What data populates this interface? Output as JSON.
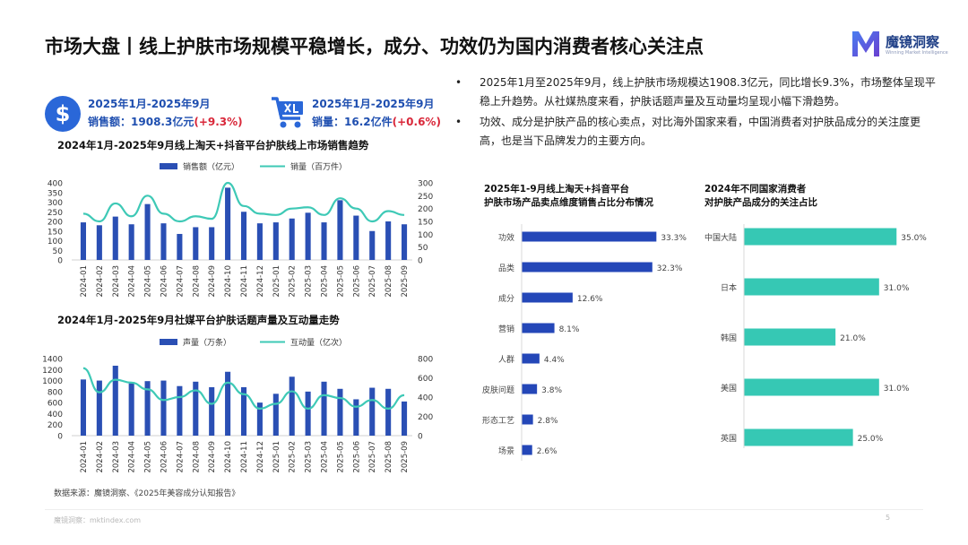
{
  "title": "市场大盘丨线上护肤市场规模平稳增长，成分、功效仍为国内消费者核心关注点",
  "brand": {
    "name": "魔镜洞察",
    "tagline": "Winning Market Intelligence"
  },
  "kpis": [
    {
      "icon": "dollar-icon",
      "period": "2025年1月-2025年9月",
      "label": "销售额：",
      "value": "1908.3亿元",
      "change": "(+9.3%)"
    },
    {
      "icon": "cart-icon",
      "period": "2025年1月-2025年9月",
      "label": "销量：",
      "value": "16.2亿件",
      "change": "(+0.6%)"
    }
  ],
  "bullets": [
    "2025年1月至2025年9月，线上护肤市场规模达1908.3亿元，同比增长9.3%，市场整体呈现平稳上升趋势。从社媒热度来看，护肤话题声量及互动量均呈现小幅下滑趋势。",
    "功效、成分是护肤产品的核心卖点，对比海外国家来看，中国消费者对护肤品成分的关注度更高，也是当下品牌发力的主要方向。"
  ],
  "source": "数据来源：魔镜洞察、《2025年美容成分认知报告》",
  "footer": "魔镜洞察：mktindex.com",
  "page_number": "5",
  "colors": {
    "bar": "#2a4fb4",
    "line": "#3ec9b6",
    "hbar": "#2447b8",
    "hbar2": "#36c8b4",
    "accent": "#d9283a"
  },
  "chart_data": [
    {
      "type": "bar+line",
      "title": "2024年1月-2025年9月线上淘天+抖音平台护肤线上市场销售趋势",
      "categories": [
        "2024-01",
        "2024-02",
        "2024-03",
        "2024-04",
        "2024-05",
        "2024-06",
        "2024-07",
        "2024-08",
        "2024-09",
        "2024-10",
        "2024-11",
        "2024-12",
        "2025-01",
        "2025-02",
        "2025-03",
        "2025-04",
        "2025-05",
        "2025-06",
        "2025-07",
        "2025-08",
        "2025-09"
      ],
      "series": [
        {
          "name": "销售额（亿元）",
          "axis": "left",
          "kind": "bar",
          "values": [
            195,
            180,
            225,
            185,
            290,
            190,
            135,
            170,
            170,
            375,
            250,
            190,
            195,
            215,
            245,
            195,
            310,
            230,
            150,
            200,
            185
          ]
        },
        {
          "name": "销量（百万件）",
          "axis": "right",
          "kind": "line",
          "values": [
            180,
            150,
            220,
            170,
            250,
            180,
            150,
            170,
            160,
            300,
            210,
            180,
            175,
            200,
            205,
            175,
            240,
            200,
            150,
            190,
            175
          ]
        }
      ],
      "left_axis": {
        "ticks": [
          0,
          50,
          100,
          150,
          200,
          250,
          300,
          350,
          400
        ],
        "min": 0,
        "max": 400
      },
      "right_axis": {
        "ticks": [
          0,
          50,
          100,
          150,
          200,
          250,
          300
        ],
        "min": 0,
        "max": 300
      },
      "legend": "top-center"
    },
    {
      "type": "bar+line",
      "title": "2024年1月-2025年9月社媒平台护肤话题声量及互动量走势",
      "categories": [
        "2024-01",
        "2024-02",
        "2024-03",
        "2024-04",
        "2024-05",
        "2024-06",
        "2024-07",
        "2024-08",
        "2024-09",
        "2024-10",
        "2024-11",
        "2024-12",
        "2025-01",
        "2025-02",
        "2025-03",
        "2025-04",
        "2025-05",
        "2025-06",
        "2025-07",
        "2025-08",
        "2025-09"
      ],
      "series": [
        {
          "name": "声量（万条）",
          "axis": "left",
          "kind": "bar",
          "values": [
            1020,
            1000,
            1270,
            950,
            990,
            1000,
            900,
            980,
            880,
            1160,
            880,
            600,
            760,
            1070,
            800,
            980,
            850,
            660,
            870,
            850,
            620
          ]
        },
        {
          "name": "互动量（亿次）",
          "axis": "right",
          "kind": "line",
          "values": [
            700,
            450,
            580,
            550,
            480,
            370,
            400,
            470,
            330,
            550,
            430,
            280,
            330,
            460,
            280,
            420,
            390,
            300,
            370,
            280,
            420
          ]
        }
      ],
      "left_axis": {
        "ticks": [
          0,
          200,
          400,
          600,
          800,
          1000,
          1200,
          1400
        ],
        "min": 0,
        "max": 1400
      },
      "right_axis": {
        "ticks": [
          0,
          200,
          400,
          600,
          800
        ],
        "min": 0,
        "max": 800
      },
      "legend": "top-center"
    },
    {
      "type": "bar",
      "orientation": "horizontal",
      "title": "2025年1-9月线上淘天+抖音平台护肤市场产品卖点维度销售占比分布情况",
      "title_lines": [
        "2025年1-9月线上淘天+抖音平台",
        "护肤市场产品卖点维度销售占比分布情况"
      ],
      "categories": [
        "功效",
        "品类",
        "成分",
        "营销",
        "人群",
        "皮肤问题",
        "形态工艺",
        "场景"
      ],
      "values": [
        33.3,
        32.3,
        12.6,
        8.1,
        4.4,
        3.8,
        2.8,
        2.6
      ],
      "labels": [
        "33.3%",
        "32.3%",
        "12.6%",
        "8.1%",
        "4.4%",
        "3.8%",
        "2.8%",
        "2.6%"
      ],
      "xlim": [
        0,
        35
      ]
    },
    {
      "type": "bar",
      "orientation": "horizontal",
      "title": "2024年不同国家消费者对护肤产品成分的关注占比",
      "title_lines": [
        "2024年不同国家消费者",
        "对护肤产品成分的关注占比"
      ],
      "categories": [
        "中国大陆",
        "日本",
        "韩国",
        "美国",
        "英国"
      ],
      "values": [
        35.0,
        31.0,
        21.0,
        31.0,
        25.0
      ],
      "labels": [
        "35.0%",
        "31.0%",
        "21.0%",
        "31.0%",
        "25.0%"
      ],
      "xlim": [
        0,
        37
      ]
    }
  ]
}
